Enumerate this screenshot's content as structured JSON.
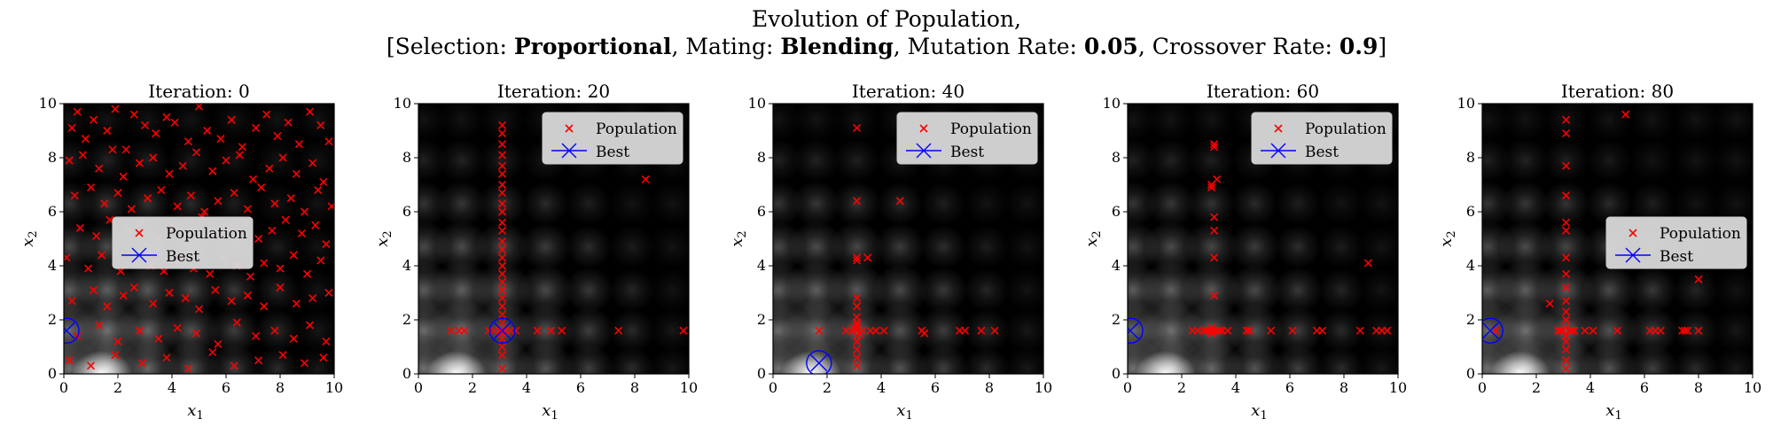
{
  "figure": {
    "title_line1": "Evolution of Population,",
    "title_line2": {
      "selection_label": "[Selection: ",
      "selection_value": "Proportional",
      "mating_label": ", Mating: ",
      "mating_value": "Blending",
      "mutation_label": ", Mutation Rate: ",
      "mutation_value": "0.05",
      "crossover_label": ", Crossover Rate: ",
      "crossover_value": "0.9",
      "close": "]"
    }
  },
  "colors": {
    "population": "#ff0000",
    "best": "#0000ff",
    "background": "#000000",
    "legend_bg": "#d9d9d9"
  },
  "chart_data": [
    {
      "type": "scatter",
      "title": "Iteration: 0",
      "xlabel": "x_1",
      "ylabel": "x_2",
      "xlim": [
        0,
        10
      ],
      "ylim": [
        0,
        10
      ],
      "xticks": [
        "0",
        "2",
        "4",
        "6",
        "8",
        "10"
      ],
      "yticks": [
        "0",
        "2",
        "4",
        "6",
        "8",
        "10"
      ],
      "legend": {
        "position": "center",
        "entries": [
          "Population",
          "Best"
        ]
      },
      "series": [
        {
          "name": "Population",
          "marker": "x",
          "x": [
            0.3,
            0.5,
            0.8,
            1.1,
            1.6,
            1.9,
            2.3,
            2.6,
            3.0,
            3.4,
            3.8,
            4.1,
            4.6,
            5.0,
            5.3,
            5.8,
            6.2,
            6.6,
            7.1,
            7.5,
            7.9,
            8.3,
            8.7,
            9.1,
            9.5,
            9.8,
            0.2,
            0.7,
            1.3,
            1.8,
            2.2,
            2.8,
            3.3,
            3.9,
            4.4,
            4.9,
            5.5,
            6.0,
            6.5,
            7.0,
            7.6,
            8.1,
            8.6,
            9.2,
            9.6,
            0.4,
            1.0,
            1.5,
            2.0,
            2.5,
            3.1,
            3.6,
            4.2,
            4.7,
            5.2,
            5.7,
            6.3,
            6.8,
            7.3,
            7.8,
            8.4,
            8.9,
            9.4,
            9.9,
            0.6,
            1.2,
            1.7,
            2.4,
            2.9,
            3.5,
            4.0,
            4.5,
            5.1,
            5.6,
            6.1,
            6.7,
            7.2,
            7.7,
            8.2,
            8.8,
            9.3,
            9.7,
            0.1,
            0.9,
            1.4,
            2.1,
            2.7,
            3.2,
            3.7,
            4.3,
            4.8,
            5.4,
            5.9,
            6.4,
            6.9,
            7.4,
            8.0,
            8.5,
            9.0,
            9.5,
            0.3,
            1.1,
            1.6,
            2.2,
            2.6,
            3.3,
            3.9,
            4.5,
            5.0,
            5.6,
            6.2,
            6.8,
            7.4,
            8.0,
            8.6,
            9.2,
            9.8,
            0.5,
            1.3,
            2.0,
            2.8,
            3.5,
            4.2,
            4.9,
            5.7,
            6.4,
            7.1,
            7.8,
            8.5,
            9.1,
            9.7,
            0.2,
            1.0,
            1.9,
            2.9,
            3.8,
            4.6,
            5.5,
            6.3,
            7.2,
            8.1,
            8.9,
            9.6
          ],
          "y": [
            9.1,
            9.7,
            8.7,
            9.4,
            9.0,
            9.8,
            8.3,
            9.6,
            9.2,
            8.9,
            9.5,
            9.3,
            8.6,
            9.9,
            9.0,
            8.7,
            9.4,
            8.4,
            9.1,
            9.6,
            8.8,
            9.3,
            8.5,
            9.7,
            9.2,
            8.6,
            7.9,
            8.1,
            7.6,
            8.3,
            7.3,
            7.8,
            8.0,
            7.4,
            7.7,
            8.2,
            7.5,
            7.9,
            8.1,
            7.2,
            7.6,
            8.0,
            7.4,
            7.8,
            7.1,
            6.6,
            6.9,
            6.3,
            6.7,
            6.1,
            6.5,
            6.8,
            6.2,
            6.6,
            6.0,
            6.4,
            6.7,
            6.1,
            6.9,
            6.3,
            6.5,
            6.0,
            6.8,
            6.2,
            5.4,
            5.1,
            5.7,
            5.3,
            5.6,
            5.0,
            5.5,
            5.2,
            5.8,
            5.1,
            5.4,
            5.6,
            5.0,
            5.3,
            5.7,
            5.2,
            5.5,
            4.8,
            4.3,
            3.9,
            4.4,
            3.8,
            4.1,
            4.0,
            3.8,
            4.2,
            3.9,
            3.7,
            4.3,
            4.0,
            3.6,
            4.1,
            3.9,
            4.4,
            3.7,
            4.2,
            2.7,
            3.1,
            2.5,
            2.9,
            3.2,
            2.6,
            3.0,
            2.8,
            2.4,
            3.1,
            2.7,
            2.9,
            2.5,
            3.2,
            2.6,
            2.8,
            3.0,
            1.4,
            1.8,
            1.2,
            1.6,
            1.3,
            1.7,
            1.5,
            1.1,
            1.9,
            1.4,
            1.6,
            1.3,
            1.8,
            1.2,
            0.5,
            0.3,
            0.7,
            0.4,
            0.6,
            0.2,
            0.8,
            0.3,
            0.5,
            0.7,
            0.4,
            0.6
          ]
        },
        {
          "name": "Best",
          "marker": "circle-x",
          "x": [
            0.1
          ],
          "y": [
            1.6
          ]
        }
      ]
    },
    {
      "type": "scatter",
      "title": "Iteration: 20",
      "xlabel": "x_1",
      "ylabel": "x_2",
      "xlim": [
        0,
        10
      ],
      "ylim": [
        0,
        10
      ],
      "xticks": [
        "0",
        "2",
        "4",
        "6",
        "8",
        "10"
      ],
      "yticks": [
        "0",
        "2",
        "4",
        "6",
        "8",
        "10"
      ],
      "legend": {
        "position": "upper right",
        "entries": [
          "Population",
          "Best"
        ]
      },
      "series": [
        {
          "name": "Population",
          "marker": "x",
          "x": [
            3.1,
            3.1,
            3.1,
            3.1,
            3.1,
            3.1,
            3.1,
            3.1,
            3.1,
            3.1,
            3.1,
            3.1,
            3.1,
            3.1,
            3.1,
            3.1,
            3.1,
            3.1,
            3.1,
            3.1,
            3.1,
            3.1,
            3.1,
            3.1,
            3.1,
            3.1,
            3.1,
            3.1,
            3.1,
            3.0,
            3.2,
            3.1,
            1.2,
            1.5,
            1.7,
            2.6,
            2.8,
            3.4,
            3.6,
            4.4,
            4.9,
            5.3,
            7.4,
            9.8,
            8.4
          ],
          "y": [
            9.2,
            8.9,
            8.5,
            8.1,
            7.7,
            7.4,
            7.0,
            6.7,
            6.3,
            6.0,
            5.6,
            5.3,
            4.9,
            4.6,
            4.3,
            4.0,
            3.7,
            3.4,
            3.1,
            2.8,
            2.5,
            2.2,
            1.9,
            1.6,
            1.3,
            1.0,
            0.7,
            0.2,
            1.6,
            1.6,
            1.6,
            1.5,
            1.6,
            1.6,
            1.6,
            1.6,
            1.6,
            1.6,
            1.6,
            1.6,
            1.6,
            1.6,
            1.6,
            1.6,
            7.2
          ]
        },
        {
          "name": "Best",
          "marker": "circle-x",
          "x": [
            3.1
          ],
          "y": [
            1.6
          ]
        }
      ]
    },
    {
      "type": "scatter",
      "title": "Iteration: 40",
      "xlabel": "x_1",
      "ylabel": "x_2",
      "xlim": [
        0,
        10
      ],
      "ylim": [
        0,
        10
      ],
      "xticks": [
        "0",
        "2",
        "4",
        "6",
        "8",
        "10"
      ],
      "yticks": [
        "0",
        "2",
        "4",
        "6",
        "8",
        "10"
      ],
      "legend": {
        "position": "upper right",
        "entries": [
          "Population",
          "Best"
        ]
      },
      "series": [
        {
          "name": "Population",
          "marker": "x",
          "x": [
            3.1,
            3.1,
            3.1,
            3.1,
            3.1,
            3.1,
            3.1,
            3.1,
            3.1,
            3.1,
            3.1,
            3.1,
            3.1,
            3.1,
            3.1,
            3.5,
            4.7,
            1.7,
            2.7,
            2.9,
            3.3,
            3.6,
            3.8,
            4.1,
            5.5,
            5.6,
            6.9,
            7.1,
            7.7,
            8.2,
            3.0,
            3.2,
            3.1,
            3.1,
            3.1
          ],
          "y": [
            9.1,
            6.4,
            4.2,
            4.3,
            2.8,
            2.5,
            2.1,
            1.9,
            1.7,
            1.6,
            1.4,
            1.2,
            0.9,
            0.6,
            0.3,
            4.3,
            6.4,
            1.6,
            1.6,
            1.6,
            1.6,
            1.6,
            1.6,
            1.6,
            1.6,
            1.5,
            1.6,
            1.6,
            1.6,
            1.6,
            1.7,
            1.5,
            1.8,
            1.4,
            1.6
          ]
        },
        {
          "name": "Best",
          "marker": "circle-x",
          "x": [
            1.7
          ],
          "y": [
            0.4
          ]
        }
      ]
    },
    {
      "type": "scatter",
      "title": "Iteration: 60",
      "xlabel": "x_1",
      "ylabel": "x_2",
      "xlim": [
        0,
        10
      ],
      "ylim": [
        0,
        10
      ],
      "xticks": [
        "0",
        "2",
        "4",
        "6",
        "8",
        "10"
      ],
      "yticks": [
        "0",
        "2",
        "4",
        "6",
        "8",
        "10"
      ],
      "legend": {
        "position": "upper right",
        "entries": [
          "Population",
          "Best"
        ]
      },
      "series": [
        {
          "name": "Population",
          "marker": "x",
          "x": [
            3.2,
            3.2,
            3.1,
            3.3,
            3.1,
            3.2,
            3.2,
            3.2,
            3.2,
            3.1,
            3.1,
            8.9,
            2.4,
            2.6,
            2.8,
            2.9,
            3.0,
            3.1,
            3.2,
            3.3,
            3.4,
            3.5,
            3.7,
            4.4,
            4.5,
            5.3,
            6.1,
            7.0,
            7.2,
            8.6,
            9.2,
            9.4,
            9.6
          ],
          "y": [
            8.5,
            8.4,
            7.0,
            7.2,
            6.9,
            5.8,
            5.3,
            4.3,
            2.9,
            1.7,
            1.5,
            4.1,
            1.6,
            1.6,
            1.6,
            1.6,
            1.6,
            1.6,
            1.6,
            1.6,
            1.6,
            1.6,
            1.6,
            1.6,
            1.6,
            1.6,
            1.6,
            1.6,
            1.6,
            1.6,
            1.6,
            1.6,
            1.6
          ]
        },
        {
          "name": "Best",
          "marker": "circle-x",
          "x": [
            0.1
          ],
          "y": [
            1.6
          ]
        }
      ]
    },
    {
      "type": "scatter",
      "title": "Iteration: 80",
      "xlabel": "x_1",
      "ylabel": "x_2",
      "xlim": [
        0,
        10
      ],
      "ylim": [
        0,
        10
      ],
      "xticks": [
        "0",
        "2",
        "4",
        "6",
        "8",
        "10"
      ],
      "yticks": [
        "0",
        "2",
        "4",
        "6",
        "8",
        "10"
      ],
      "legend": {
        "position": "center right",
        "entries": [
          "Population",
          "Best"
        ]
      },
      "series": [
        {
          "name": "Population",
          "marker": "x",
          "x": [
            3.1,
            3.1,
            3.1,
            3.1,
            3.1,
            3.1,
            3.1,
            3.1,
            3.1,
            3.1,
            3.1,
            3.1,
            3.1,
            3.1,
            3.1,
            3.1,
            3.1,
            3.1,
            5.3,
            8.0,
            2.5,
            0.5,
            2.8,
            2.9,
            3.0,
            3.2,
            3.3,
            3.4,
            3.8,
            4.1,
            5.0,
            6.2,
            6.4,
            6.6,
            7.4,
            7.5,
            7.6,
            8.0
          ],
          "y": [
            9.4,
            8.9,
            7.7,
            6.6,
            5.6,
            5.3,
            4.3,
            3.7,
            3.2,
            2.7,
            2.3,
            2.0,
            1.7,
            1.4,
            1.2,
            0.9,
            0.5,
            0.2,
            9.6,
            3.5,
            2.6,
            1.6,
            1.6,
            1.6,
            1.6,
            1.6,
            1.6,
            1.6,
            1.6,
            1.6,
            1.6,
            1.6,
            1.6,
            1.6,
            1.6,
            1.6,
            1.6,
            1.6
          ]
        },
        {
          "name": "Best",
          "marker": "circle-x",
          "x": [
            0.3
          ],
          "y": [
            1.6
          ]
        }
      ]
    }
  ]
}
